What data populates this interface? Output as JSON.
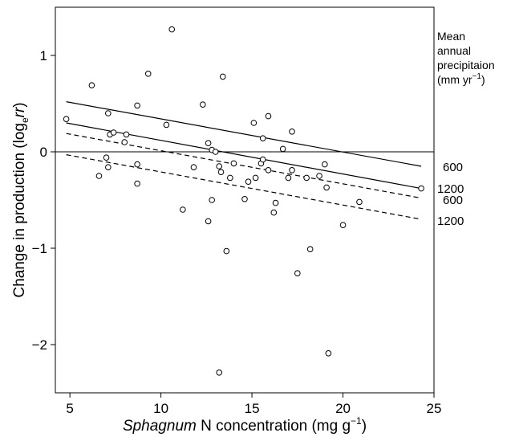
{
  "chart_data": {
    "type": "scatter",
    "title": "",
    "xlabel_parts": [
      "Sphagnum",
      " N concentration (mg g",
      "−1",
      ")"
    ],
    "ylabel_parts": [
      "Change in production (log",
      "e",
      "rr",
      ")"
    ],
    "xlim": [
      4.2,
      25
    ],
    "ylim": [
      -2.5,
      1.5
    ],
    "xticks": [
      5,
      10,
      15,
      20,
      25
    ],
    "yticks": [
      1,
      0,
      -1,
      -2
    ],
    "ytick_labels": [
      "1",
      "0",
      "−1",
      "−2"
    ],
    "reference_line_y": 0,
    "legend": {
      "lines": [
        "Mean",
        "annual",
        "precipitaion"
      ],
      "unit_parts": [
        "(mm yr",
        "−1",
        ")"
      ],
      "placement": "top-right, outside plot"
    },
    "points": [
      [
        4.8,
        0.34
      ],
      [
        6.2,
        0.69
      ],
      [
        6.6,
        -0.25
      ],
      [
        7.0,
        -0.06
      ],
      [
        7.1,
        -0.16
      ],
      [
        7.1,
        0.4
      ],
      [
        7.2,
        0.18
      ],
      [
        7.4,
        0.2
      ],
      [
        8.0,
        0.1
      ],
      [
        8.1,
        0.18
      ],
      [
        8.7,
        0.48
      ],
      [
        8.7,
        -0.13
      ],
      [
        8.7,
        -0.33
      ],
      [
        9.3,
        0.81
      ],
      [
        10.3,
        0.28
      ],
      [
        10.6,
        1.27
      ],
      [
        11.2,
        -0.6
      ],
      [
        11.8,
        -0.16
      ],
      [
        12.3,
        0.49
      ],
      [
        12.6,
        0.09
      ],
      [
        12.6,
        -0.72
      ],
      [
        12.8,
        0.02
      ],
      [
        12.8,
        -0.5
      ],
      [
        13.0,
        0.0
      ],
      [
        13.2,
        -0.15
      ],
      [
        13.2,
        -2.29
      ],
      [
        13.3,
        -0.21
      ],
      [
        13.4,
        0.78
      ],
      [
        13.6,
        -1.03
      ],
      [
        13.8,
        -0.27
      ],
      [
        14.0,
        -0.12
      ],
      [
        14.6,
        -0.49
      ],
      [
        14.8,
        -0.31
      ],
      [
        15.1,
        0.3
      ],
      [
        15.2,
        -0.27
      ],
      [
        15.5,
        -0.12
      ],
      [
        15.6,
        0.14
      ],
      [
        15.6,
        -0.08
      ],
      [
        15.9,
        0.37
      ],
      [
        15.9,
        -0.19
      ],
      [
        16.2,
        -0.63
      ],
      [
        16.3,
        -0.53
      ],
      [
        16.7,
        0.03
      ],
      [
        17.0,
        -0.27
      ],
      [
        17.2,
        0.21
      ],
      [
        17.2,
        -0.19
      ],
      [
        17.5,
        -1.26
      ],
      [
        18.0,
        -0.27
      ],
      [
        18.2,
        -1.01
      ],
      [
        18.7,
        -0.25
      ],
      [
        19.0,
        -0.13
      ],
      [
        19.1,
        -0.37
      ],
      [
        19.2,
        -2.09
      ],
      [
        20.0,
        -0.76
      ],
      [
        20.9,
        -0.52
      ],
      [
        24.3,
        -0.38
      ]
    ],
    "series": [
      {
        "style": "solid",
        "label": "600",
        "x": [
          4.8,
          24.3
        ],
        "y": [
          0.52,
          -0.15
        ]
      },
      {
        "style": "solid",
        "label": "1200",
        "x": [
          4.8,
          24.3
        ],
        "y": [
          0.3,
          -0.38
        ]
      },
      {
        "style": "dashed",
        "label": "600",
        "x": [
          4.8,
          24.3
        ],
        "y": [
          0.19,
          -0.48
        ]
      },
      {
        "style": "dashed",
        "label": "1200",
        "x": [
          4.8,
          24.3
        ],
        "y": [
          -0.03,
          -0.7
        ]
      }
    ],
    "grid": false
  }
}
